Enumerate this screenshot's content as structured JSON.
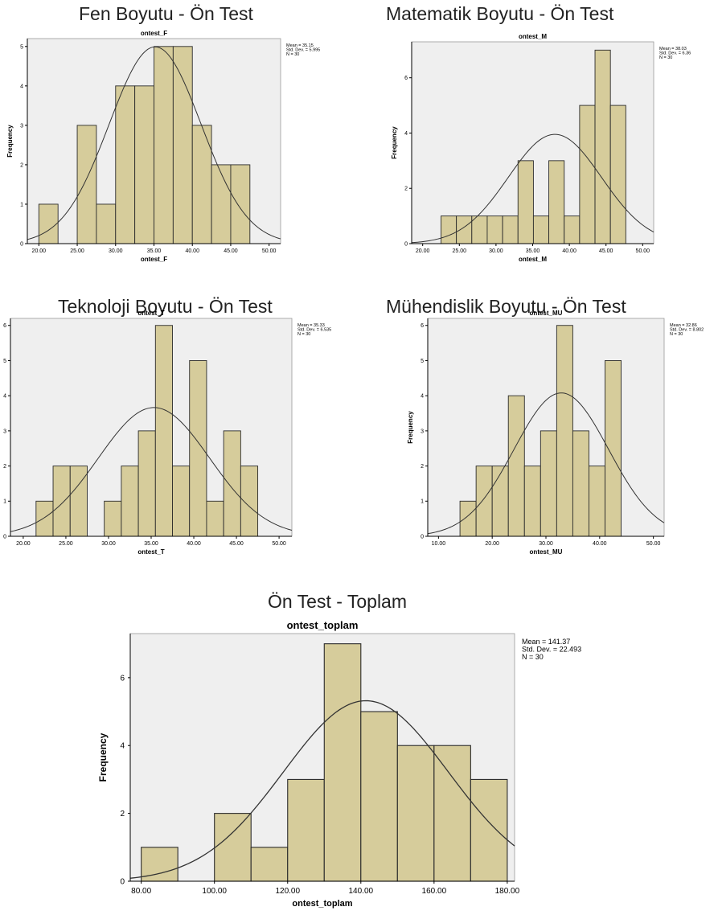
{
  "headings": [
    "Fen Boyutu - Ön Test",
    "Matematik Boyutu - Ön Test",
    "Teknoloji Boyutu - Ön Test",
    "Mühendislik Boyutu - Ön Test",
    "Ön Test - Toplam"
  ],
  "colors": {
    "bar_fill": "#d6cc9b",
    "bar_edge": "#2b2b2b",
    "plot_bg": "#efefef",
    "curve": "#333333",
    "axis": "#000000"
  },
  "chart_data": [
    {
      "type": "bar",
      "title": "ontest_F",
      "xlabel": "ontest_F",
      "ylabel": "Frequency",
      "xlim": [
        18.5,
        51.5
      ],
      "ylim": [
        0,
        5.2
      ],
      "x_ticks": [
        20,
        25,
        30,
        35,
        40,
        45,
        50
      ],
      "x_tick_labels": [
        "20.00",
        "25.00",
        "30.00",
        "35.00",
        "40.00",
        "45.00",
        "50.00"
      ],
      "y_ticks": [
        0,
        1,
        2,
        3,
        4,
        5
      ],
      "y_tick_labels": [
        "0",
        "1",
        "2",
        "3",
        "4",
        "5"
      ],
      "bins": [
        {
          "x0": 20,
          "x1": 22.5,
          "count": 1
        },
        {
          "x0": 25,
          "x1": 27.5,
          "count": 3
        },
        {
          "x0": 27.5,
          "x1": 30,
          "count": 1
        },
        {
          "x0": 30,
          "x1": 32.5,
          "count": 4
        },
        {
          "x0": 32.5,
          "x1": 35,
          "count": 4
        },
        {
          "x0": 35,
          "x1": 37.5,
          "count": 5
        },
        {
          "x0": 37.5,
          "x1": 40,
          "count": 5
        },
        {
          "x0": 40,
          "x1": 42.5,
          "count": 3
        },
        {
          "x0": 42.5,
          "x1": 45,
          "count": 2
        },
        {
          "x0": 45,
          "x1": 47.5,
          "count": 2
        }
      ],
      "normal_curve": {
        "mean": 35.15,
        "sd": 5.995,
        "n": 30,
        "bin_width": 2.5
      },
      "legend_lines": [
        "Mean = 35.15",
        "Std. Dev. = 5.995",
        "N = 30"
      ],
      "legend_position": "top-right"
    },
    {
      "type": "bar",
      "title": "ontest_M",
      "xlabel": "ontest_M",
      "ylabel": "Frequency",
      "xlim": [
        18.5,
        51.5
      ],
      "ylim": [
        0,
        7.3
      ],
      "x_ticks": [
        20,
        25,
        30,
        35,
        40,
        45,
        50
      ],
      "x_tick_labels": [
        "20.00",
        "25.00",
        "30.00",
        "35.00",
        "40.00",
        "45.00",
        "50.00"
      ],
      "y_ticks": [
        0,
        2,
        4,
        6
      ],
      "y_tick_labels": [
        "0",
        "2",
        "4",
        "6"
      ],
      "bins": [
        {
          "x0": 22.5,
          "x1": 24.6,
          "count": 1
        },
        {
          "x0": 24.6,
          "x1": 26.7,
          "count": 1
        },
        {
          "x0": 26.7,
          "x1": 28.8,
          "count": 1
        },
        {
          "x0": 28.8,
          "x1": 30.9,
          "count": 1
        },
        {
          "x0": 30.9,
          "x1": 33.0,
          "count": 1
        },
        {
          "x0": 33.0,
          "x1": 35.1,
          "count": 3
        },
        {
          "x0": 35.1,
          "x1": 37.2,
          "count": 1
        },
        {
          "x0": 37.2,
          "x1": 39.3,
          "count": 3
        },
        {
          "x0": 39.3,
          "x1": 41.4,
          "count": 1
        },
        {
          "x0": 41.4,
          "x1": 43.5,
          "count": 5
        },
        {
          "x0": 43.5,
          "x1": 45.6,
          "count": 7
        },
        {
          "x0": 45.6,
          "x1": 47.7,
          "count": 5
        }
      ],
      "normal_curve": {
        "mean": 38.03,
        "sd": 6.36,
        "n": 30,
        "bin_width": 2.1
      },
      "legend_lines": [
        "Mean = 38.03",
        "Std. Dev. = 6.36",
        "N = 30"
      ],
      "legend_position": "top-right"
    },
    {
      "type": "bar",
      "title": "ontest_T",
      "xlabel": "ontest_T",
      "ylabel": "Frequency",
      "xlim": [
        18.5,
        51.5
      ],
      "ylim": [
        0,
        6.2
      ],
      "x_ticks": [
        20,
        25,
        30,
        35,
        40,
        45,
        50
      ],
      "x_tick_labels": [
        "20.00",
        "25.00",
        "30.00",
        "35.00",
        "40.00",
        "45.00",
        "50.00"
      ],
      "y_ticks": [
        0,
        1,
        2,
        3,
        4,
        5,
        6
      ],
      "y_tick_labels": [
        "0",
        "1",
        "2",
        "3",
        "4",
        "5",
        "6"
      ],
      "bins": [
        {
          "x0": 21.5,
          "x1": 23.5,
          "count": 1
        },
        {
          "x0": 23.5,
          "x1": 25.5,
          "count": 2
        },
        {
          "x0": 25.5,
          "x1": 27.5,
          "count": 2
        },
        {
          "x0": 29.5,
          "x1": 31.5,
          "count": 1
        },
        {
          "x0": 31.5,
          "x1": 33.5,
          "count": 2
        },
        {
          "x0": 33.5,
          "x1": 35.5,
          "count": 3
        },
        {
          "x0": 35.5,
          "x1": 37.5,
          "count": 6
        },
        {
          "x0": 37.5,
          "x1": 39.5,
          "count": 2
        },
        {
          "x0": 39.5,
          "x1": 41.5,
          "count": 5
        },
        {
          "x0": 41.5,
          "x1": 43.5,
          "count": 1
        },
        {
          "x0": 43.5,
          "x1": 45.5,
          "count": 3
        },
        {
          "x0": 45.5,
          "x1": 47.5,
          "count": 2
        }
      ],
      "normal_curve": {
        "mean": 35.33,
        "sd": 6.535,
        "n": 30,
        "bin_width": 2
      },
      "legend_lines": [
        "Mean = 35.33",
        "Std. Dev. = 6.535",
        "N = 30"
      ],
      "legend_position": "top-right"
    },
    {
      "type": "bar",
      "title": "ontest_MU",
      "xlabel": "ontest_MU",
      "ylabel": "Frequency",
      "xlim": [
        8,
        52
      ],
      "ylim": [
        0,
        6.2
      ],
      "x_ticks": [
        10,
        20,
        30,
        40,
        50
      ],
      "x_tick_labels": [
        "10.00",
        "20.00",
        "30.00",
        "40.00",
        "50.00"
      ],
      "y_ticks": [
        0,
        1,
        2,
        3,
        4,
        5,
        6
      ],
      "y_tick_labels": [
        "0",
        "1",
        "2",
        "3",
        "4",
        "5",
        "6"
      ],
      "bins": [
        {
          "x0": 14,
          "x1": 17,
          "count": 1
        },
        {
          "x0": 17,
          "x1": 20,
          "count": 2
        },
        {
          "x0": 20,
          "x1": 23,
          "count": 2
        },
        {
          "x0": 23,
          "x1": 26,
          "count": 4
        },
        {
          "x0": 26,
          "x1": 29,
          "count": 2
        },
        {
          "x0": 29,
          "x1": 32,
          "count": 3
        },
        {
          "x0": 32,
          "x1": 35,
          "count": 6
        },
        {
          "x0": 35,
          "x1": 38,
          "count": 3
        },
        {
          "x0": 38,
          "x1": 41,
          "count": 2
        },
        {
          "x0": 41,
          "x1": 44,
          "count": 5
        }
      ],
      "normal_curve": {
        "mean": 32.86,
        "sd": 8.802,
        "n": 30,
        "bin_width": 3
      },
      "legend_lines": [
        "Mean = 32.86",
        "Std. Dev. = 8.802",
        "N = 30"
      ],
      "legend_position": "top-right"
    },
    {
      "type": "bar",
      "title": "ontest_toplam",
      "xlabel": "ontest_toplam",
      "ylabel": "Frequency",
      "xlim": [
        77,
        182
      ],
      "ylim": [
        0,
        7.3
      ],
      "x_ticks": [
        80,
        100,
        120,
        140,
        160,
        180
      ],
      "x_tick_labels": [
        "80.00",
        "100.00",
        "120.00",
        "140.00",
        "160.00",
        "180.00"
      ],
      "y_ticks": [
        0,
        2,
        4,
        6
      ],
      "y_tick_labels": [
        "0",
        "2",
        "4",
        "6"
      ],
      "bins": [
        {
          "x0": 80,
          "x1": 90,
          "count": 1
        },
        {
          "x0": 100,
          "x1": 110,
          "count": 2
        },
        {
          "x0": 110,
          "x1": 120,
          "count": 1
        },
        {
          "x0": 120,
          "x1": 130,
          "count": 3
        },
        {
          "x0": 130,
          "x1": 140,
          "count": 7
        },
        {
          "x0": 140,
          "x1": 150,
          "count": 5
        },
        {
          "x0": 150,
          "x1": 160,
          "count": 4
        },
        {
          "x0": 160,
          "x1": 170,
          "count": 4
        },
        {
          "x0": 170,
          "x1": 180,
          "count": 3
        }
      ],
      "normal_curve": {
        "mean": 141.37,
        "sd": 22.493,
        "n": 30,
        "bin_width": 10
      },
      "legend_lines": [
        "Mean = 141.37",
        "Std. Dev. = 22.493",
        "N = 30"
      ],
      "legend_position": "top-right"
    }
  ]
}
